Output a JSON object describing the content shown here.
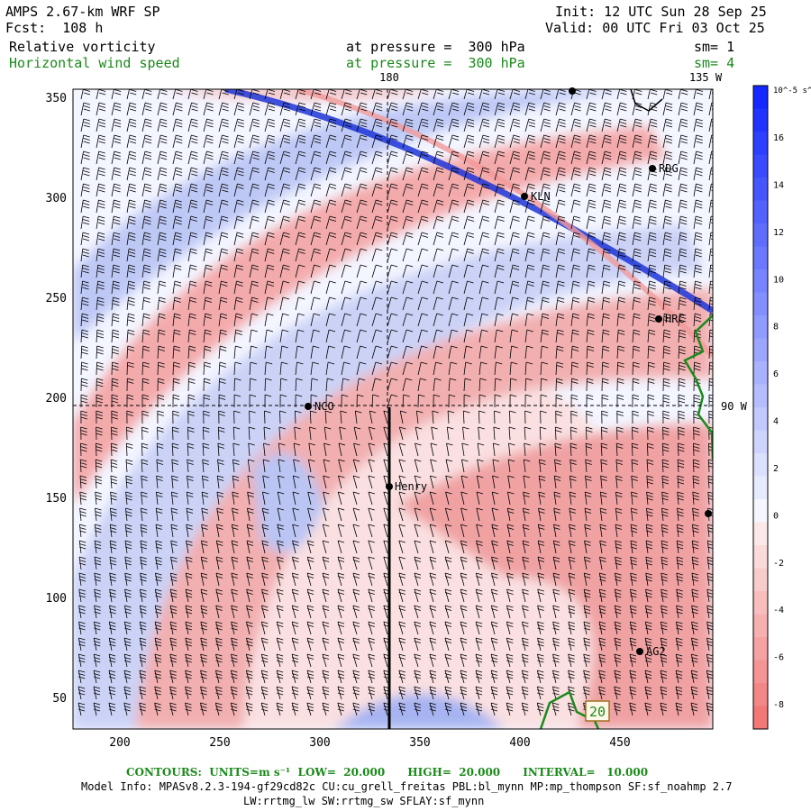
{
  "header": {
    "model": "AMPS 2.67-km WRF SP",
    "forecast": "Fcst:  108 h",
    "init": "Init: 12 UTC Sun 28 Sep 25",
    "valid": "Valid: 00 UTC Fri 03 Oct 25",
    "field1_name": "Relative vorticity",
    "field1_level": "at pressure =  300 hPa",
    "field1_sm": "sm= 1",
    "field2_name": "Horizontal wind speed",
    "field2_level": "at pressure =  300 hPa",
    "field2_sm": "sm= 4"
  },
  "map": {
    "lon_labels": {
      "top_180": "180",
      "top_135w": "135 W",
      "right_90w": "90 W"
    },
    "x_ticks": [
      "200",
      "250",
      "300",
      "350",
      "400",
      "450"
    ],
    "y_ticks": [
      "50",
      "100",
      "150",
      "200",
      "250",
      "300",
      "350"
    ],
    "stations": [
      {
        "id": "RDG",
        "label": "RDG"
      },
      {
        "id": "KLN",
        "label": "KLN"
      },
      {
        "id": "HRC",
        "label": "HRC"
      },
      {
        "id": "NCO",
        "label": "NCO"
      },
      {
        "id": "Henry",
        "label": "Henry"
      },
      {
        "id": "AG2",
        "label": "AG2"
      }
    ],
    "contour_label": "20"
  },
  "colorbar": {
    "unit": "10^-5 s^-1",
    "ticks": [
      "16",
      "14",
      "12",
      "10",
      "8",
      "6",
      "4",
      "2",
      "0",
      "-2",
      "-4",
      "-6",
      "-8"
    ],
    "colors": {
      "positive": "#1f3fe0",
      "negative": "#f08080",
      "neutral": "#ffffff"
    }
  },
  "footer": {
    "contours": "CONTOURS:  UNITS=m s⁻¹  LOW=  20.000      HIGH=  20.000      INTERVAL=   10.000",
    "model_info_1": "Model Info: MPASv8.2.3-194-gf29cd82c CU:cu_grell_freitas PBL:bl_mynn MP:mp_thompson SF:sf_noahmp 2.7",
    "model_info_2": "LW:rrtmg_lw SW:rrtmg_sw SFLAY:sf_mynn"
  }
}
